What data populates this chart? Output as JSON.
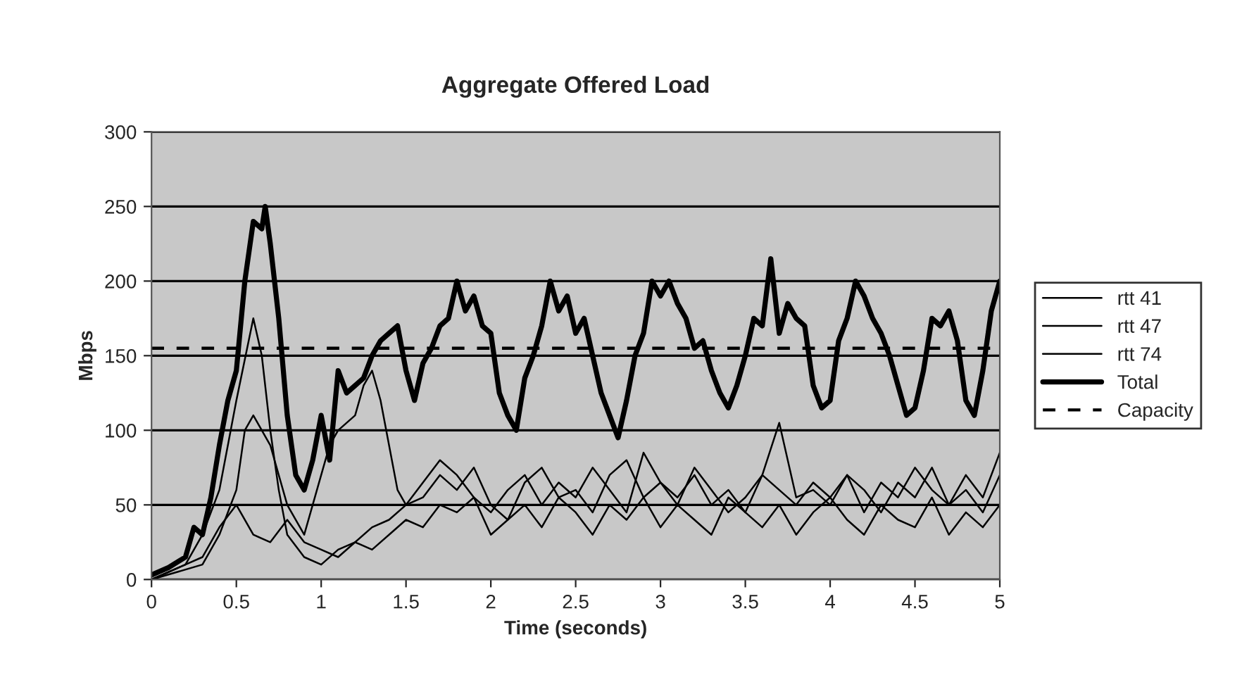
{
  "chart_data": {
    "type": "line",
    "title": "Aggregate Offered Load",
    "xlabel": "Time (seconds)",
    "ylabel": "Mbps",
    "xlim": [
      0,
      5
    ],
    "xticks": [
      0,
      0.5,
      1,
      1.5,
      2,
      2.5,
      3,
      3.5,
      4,
      4.5,
      5
    ],
    "ylim": [
      0,
      300
    ],
    "yticks": [
      0,
      50,
      100,
      150,
      200,
      250,
      300
    ],
    "grid": "y",
    "legend": "right",
    "marker": "none",
    "series": [
      {
        "name": "rtt 41",
        "color": "#000000",
        "x": [
          0,
          0.2,
          0.3,
          0.4,
          0.5,
          0.6,
          0.65,
          0.7,
          0.75,
          0.8,
          0.9,
          1.0,
          1.1,
          1.2,
          1.3,
          1.4,
          1.5,
          1.6,
          1.7,
          1.8,
          1.9,
          2.0,
          2.1,
          2.2,
          2.3,
          2.4,
          2.5,
          2.6,
          2.7,
          2.8,
          2.9,
          3.0,
          3.1,
          3.2,
          3.3,
          3.4,
          3.5,
          3.6,
          3.7,
          3.8,
          3.9,
          4.0,
          4.1,
          4.2,
          4.3,
          4.4,
          4.5,
          4.6,
          4.7,
          4.8,
          4.9,
          5.0
        ],
        "values": [
          0,
          10,
          30,
          60,
          120,
          175,
          150,
          100,
          60,
          30,
          15,
          10,
          20,
          25,
          35,
          40,
          50,
          55,
          70,
          60,
          75,
          50,
          40,
          65,
          75,
          55,
          60,
          45,
          70,
          80,
          55,
          65,
          50,
          75,
          60,
          45,
          55,
          70,
          60,
          50,
          65,
          55,
          70,
          60,
          45,
          65,
          55,
          75,
          50,
          60,
          45,
          70
        ]
      },
      {
        "name": "rtt 47",
        "color": "#000000",
        "x": [
          0,
          0.3,
          0.4,
          0.5,
          0.55,
          0.6,
          0.7,
          0.8,
          0.9,
          1.0,
          1.05,
          1.1,
          1.2,
          1.25,
          1.3,
          1.35,
          1.4,
          1.45,
          1.5,
          1.6,
          1.7,
          1.8,
          1.9,
          2.0,
          2.1,
          2.2,
          2.3,
          2.4,
          2.5,
          2.6,
          2.7,
          2.8,
          2.9,
          3.0,
          3.1,
          3.2,
          3.3,
          3.4,
          3.5,
          3.6,
          3.7,
          3.8,
          3.9,
          4.0,
          4.1,
          4.2,
          4.3,
          4.4,
          4.5,
          4.6,
          4.7,
          4.8,
          4.9,
          5.0
        ],
        "values": [
          0,
          10,
          30,
          60,
          100,
          110,
          90,
          50,
          30,
          70,
          90,
          100,
          110,
          130,
          140,
          120,
          90,
          60,
          50,
          65,
          80,
          70,
          55,
          45,
          60,
          70,
          50,
          65,
          55,
          75,
          60,
          45,
          85,
          65,
          55,
          70,
          50,
          60,
          45,
          70,
          105,
          55,
          60,
          50,
          70,
          45,
          65,
          55,
          75,
          60,
          50,
          70,
          55,
          85
        ]
      },
      {
        "name": "rtt 74",
        "color": "#000000",
        "x": [
          0,
          0.3,
          0.4,
          0.5,
          0.6,
          0.7,
          0.8,
          0.9,
          1.0,
          1.1,
          1.2,
          1.3,
          1.4,
          1.5,
          1.6,
          1.7,
          1.8,
          1.9,
          2.0,
          2.1,
          2.2,
          2.3,
          2.4,
          2.5,
          2.6,
          2.7,
          2.8,
          2.9,
          3.0,
          3.1,
          3.2,
          3.3,
          3.4,
          3.5,
          3.6,
          3.7,
          3.8,
          3.9,
          4.0,
          4.1,
          4.2,
          4.3,
          4.4,
          4.5,
          4.6,
          4.7,
          4.8,
          4.9,
          5.0
        ],
        "values": [
          0,
          15,
          35,
          50,
          30,
          25,
          40,
          25,
          20,
          15,
          25,
          20,
          30,
          40,
          35,
          50,
          45,
          55,
          30,
          40,
          50,
          35,
          55,
          45,
          30,
          50,
          40,
          55,
          35,
          50,
          40,
          30,
          55,
          45,
          35,
          50,
          30,
          45,
          55,
          40,
          30,
          50,
          40,
          35,
          55,
          30,
          45,
          35,
          50
        ]
      },
      {
        "name": "Total",
        "color": "#000000",
        "x": [
          0,
          0.1,
          0.2,
          0.25,
          0.3,
          0.35,
          0.4,
          0.45,
          0.5,
          0.55,
          0.6,
          0.65,
          0.67,
          0.7,
          0.75,
          0.8,
          0.85,
          0.9,
          0.95,
          1.0,
          1.05,
          1.1,
          1.15,
          1.2,
          1.25,
          1.3,
          1.35,
          1.4,
          1.45,
          1.5,
          1.55,
          1.6,
          1.65,
          1.7,
          1.75,
          1.8,
          1.85,
          1.9,
          1.95,
          2.0,
          2.05,
          2.1,
          2.15,
          2.2,
          2.25,
          2.3,
          2.35,
          2.4,
          2.45,
          2.5,
          2.55,
          2.6,
          2.65,
          2.7,
          2.75,
          2.8,
          2.85,
          2.9,
          2.95,
          3.0,
          3.05,
          3.1,
          3.15,
          3.2,
          3.25,
          3.3,
          3.35,
          3.4,
          3.45,
          3.5,
          3.55,
          3.6,
          3.65,
          3.7,
          3.75,
          3.8,
          3.85,
          3.9,
          3.95,
          4.0,
          4.05,
          4.1,
          4.15,
          4.2,
          4.25,
          4.3,
          4.35,
          4.4,
          4.45,
          4.5,
          4.55,
          4.6,
          4.65,
          4.7,
          4.75,
          4.8,
          4.85,
          4.9,
          4.95,
          5.0
        ],
        "values": [
          3,
          8,
          15,
          35,
          30,
          55,
          90,
          120,
          140,
          200,
          240,
          235,
          250,
          225,
          175,
          110,
          70,
          60,
          80,
          110,
          80,
          140,
          125,
          130,
          135,
          150,
          160,
          165,
          170,
          140,
          120,
          145,
          155,
          170,
          175,
          200,
          180,
          190,
          170,
          165,
          125,
          110,
          100,
          135,
          150,
          170,
          200,
          180,
          190,
          165,
          175,
          150,
          125,
          110,
          95,
          120,
          150,
          165,
          200,
          190,
          200,
          185,
          175,
          155,
          160,
          140,
          125,
          115,
          130,
          150,
          175,
          170,
          215,
          165,
          185,
          175,
          170,
          130,
          115,
          120,
          160,
          175,
          200,
          190,
          175,
          165,
          150,
          130,
          110,
          115,
          140,
          175,
          170,
          180,
          160,
          120,
          110,
          140,
          180,
          200
        ]
      },
      {
        "name": "Capacity",
        "color": "#000000",
        "line_style": "dashed",
        "x": [
          0,
          5
        ],
        "values": [
          155,
          155
        ]
      }
    ]
  }
}
